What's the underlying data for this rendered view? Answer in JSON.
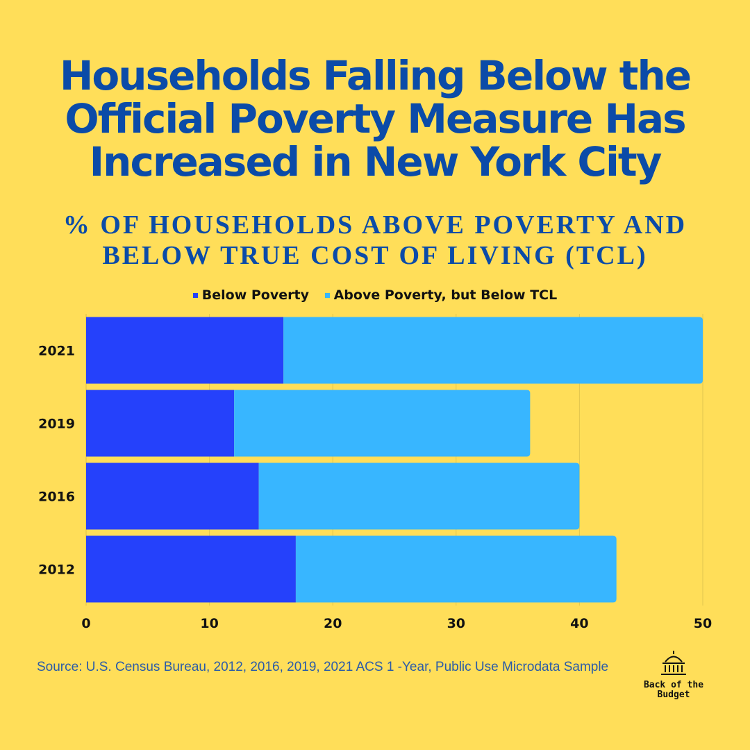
{
  "title": "Households Falling Below the Official Poverty Measure Has Increased in New York City",
  "subtitle": "% of Households Above Poverty and Below True Cost of Living (TCL)",
  "source": "Source: U.S. Census Bureau, 2012, 2016, 2019, 2021 ACS 1 -Year, Public Use Microdata Sample",
  "logo": {
    "line1": "Back of the",
    "line2": "Budget",
    "icon": "capitol-dome-icon"
  },
  "colors": {
    "background": "#FFDE59",
    "below_poverty": "#2541FB",
    "above_poverty": "#38B6FF",
    "title": "#0B4BA8"
  },
  "chart_data": {
    "type": "bar",
    "orientation": "horizontal",
    "stacked": true,
    "categories": [
      "2021",
      "2019",
      "2016",
      "2012"
    ],
    "series": [
      {
        "name": "Below Poverty",
        "values": [
          16,
          12,
          14,
          17
        ],
        "color": "#2541FB"
      },
      {
        "name": "Above Poverty, but Below TCL",
        "values": [
          34,
          24,
          26,
          26
        ],
        "color": "#38B6FF"
      }
    ],
    "xlim": [
      0,
      50
    ],
    "xticks": [
      0,
      10,
      20,
      30,
      40,
      50
    ],
    "xlabel": "",
    "ylabel": "",
    "grid": true,
    "legend_position": "top"
  }
}
